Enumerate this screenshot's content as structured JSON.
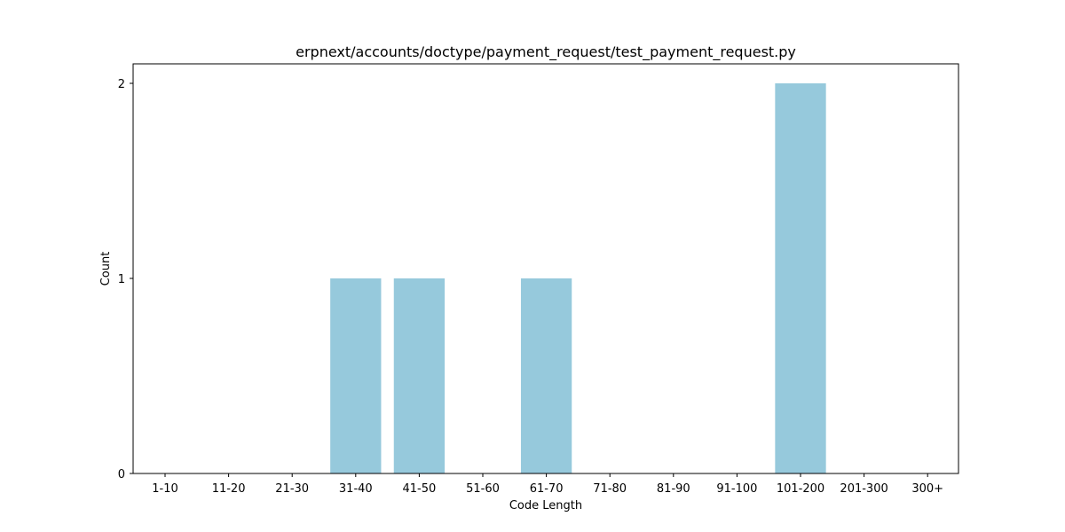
{
  "chart_data": {
    "type": "bar",
    "title": "erpnext/accounts/doctype/payment_request/test_payment_request.py",
    "xlabel": "Code Length",
    "ylabel": "Count",
    "categories": [
      "1-10",
      "11-20",
      "21-30",
      "31-40",
      "41-50",
      "51-60",
      "61-70",
      "71-80",
      "81-90",
      "91-100",
      "101-200",
      "201-300",
      "300+"
    ],
    "values": [
      0,
      0,
      0,
      1,
      1,
      0,
      1,
      0,
      0,
      0,
      2,
      0,
      0
    ],
    "yticks": [
      0,
      1,
      2
    ],
    "ylim": [
      0,
      2.1
    ],
    "grid": false,
    "bar_color": "#96c9dc"
  }
}
